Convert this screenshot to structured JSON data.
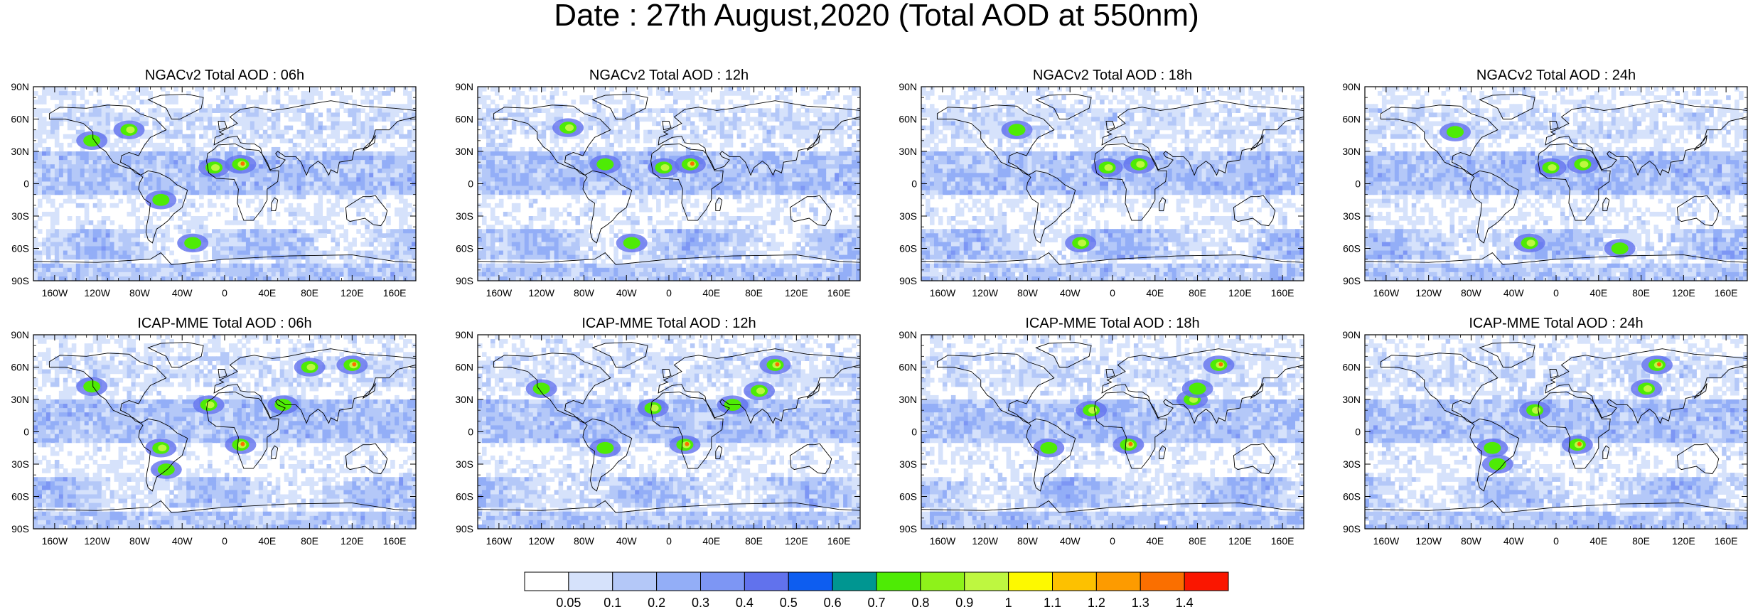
{
  "title": "Date : 27th August,2020 (Total AOD at 550nm)",
  "panels": [
    {
      "title": "NGACv2 Total AOD : 06h",
      "model": "NGACv2",
      "hour": "06h",
      "hotspots": [
        [
          -90,
          50,
          2
        ],
        [
          -125,
          40,
          1
        ],
        [
          -10,
          15,
          2
        ],
        [
          15,
          18,
          3
        ],
        [
          -60,
          -15,
          1
        ],
        [
          -30,
          -55,
          1
        ]
      ]
    },
    {
      "title": "NGACv2 Total AOD : 12h",
      "model": "NGACv2",
      "hour": "12h",
      "hotspots": [
        [
          -95,
          52,
          2
        ],
        [
          -60,
          18,
          1
        ],
        [
          -5,
          15,
          2
        ],
        [
          20,
          18,
          3
        ],
        [
          -35,
          -55,
          1
        ]
      ]
    },
    {
      "title": "NGACv2 Total AOD : 18h",
      "model": "NGACv2",
      "hour": "18h",
      "hotspots": [
        [
          -90,
          50,
          1
        ],
        [
          -5,
          15,
          2
        ],
        [
          25,
          18,
          2
        ],
        [
          -30,
          -55,
          2
        ]
      ]
    },
    {
      "title": "NGACv2 Total AOD : 24h",
      "model": "NGACv2",
      "hour": "24h",
      "hotspots": [
        [
          -95,
          48,
          1
        ],
        [
          -5,
          15,
          2
        ],
        [
          25,
          18,
          2
        ],
        [
          -25,
          -55,
          2
        ],
        [
          60,
          -60,
          1
        ]
      ]
    },
    {
      "title": "ICAP-MME Total AOD : 06h",
      "model": "ICAP-MME",
      "hour": "06h",
      "hotspots": [
        [
          -125,
          42,
          1
        ],
        [
          -15,
          25,
          2
        ],
        [
          15,
          -12,
          3
        ],
        [
          -60,
          -15,
          2
        ],
        [
          55,
          25,
          1
        ],
        [
          120,
          62,
          3
        ],
        [
          80,
          60,
          2
        ],
        [
          -55,
          -35,
          1
        ]
      ]
    },
    {
      "title": "ICAP-MME Total AOD : 12h",
      "model": "ICAP-MME",
      "hour": "12h",
      "hotspots": [
        [
          -120,
          40,
          1
        ],
        [
          -15,
          22,
          2
        ],
        [
          15,
          -12,
          3
        ],
        [
          -60,
          -15,
          1
        ],
        [
          60,
          25,
          1
        ],
        [
          100,
          62,
          3
        ],
        [
          85,
          38,
          2
        ]
      ]
    },
    {
      "title": "ICAP-MME Total AOD : 18h",
      "model": "ICAP-MME",
      "hour": "18h",
      "hotspots": [
        [
          -20,
          20,
          2
        ],
        [
          15,
          -12,
          3
        ],
        [
          -60,
          -15,
          1
        ],
        [
          75,
          30,
          2
        ],
        [
          100,
          62,
          3
        ],
        [
          80,
          40,
          1
        ]
      ]
    },
    {
      "title": "ICAP-MME Total AOD : 24h",
      "model": "ICAP-MME",
      "hour": "24h",
      "hotspots": [
        [
          -20,
          20,
          2
        ],
        [
          20,
          -12,
          3
        ],
        [
          -60,
          -15,
          1
        ],
        [
          95,
          62,
          3
        ],
        [
          85,
          40,
          2
        ],
        [
          -55,
          -30,
          1
        ]
      ]
    }
  ],
  "axes": {
    "lat_labels": [
      "90N",
      "60N",
      "30N",
      "0",
      "30S",
      "60S",
      "90S"
    ],
    "lat_values": [
      90,
      60,
      30,
      0,
      -30,
      -60,
      -90
    ],
    "lon_labels": [
      "160W",
      "120W",
      "80W",
      "40W",
      "0",
      "40E",
      "80E",
      "120E",
      "160E"
    ],
    "lon_values": [
      -160,
      -120,
      -80,
      -40,
      0,
      40,
      80,
      120,
      160
    ]
  },
  "colorbar": {
    "labels": [
      "0.05",
      "0.1",
      "0.2",
      "0.3",
      "0.4",
      "0.5",
      "0.6",
      "0.7",
      "0.8",
      "0.9",
      "1",
      "1.1",
      "1.2",
      "1.3",
      "1.4"
    ],
    "colors": [
      "#ffffff",
      "#d6e2fb",
      "#b4c8f8",
      "#93aef7",
      "#7d96f4",
      "#6172ed",
      "#0d5df0",
      "#009691",
      "#4eeb05",
      "#8ef21a",
      "#bef740",
      "#fdf900",
      "#fdc100",
      "#fd9b00",
      "#fa6f00",
      "#fa1600"
    ]
  }
}
